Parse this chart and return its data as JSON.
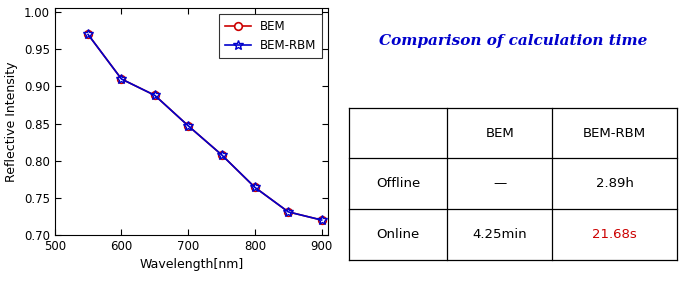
{
  "wavelengths": [
    550,
    600,
    650,
    700,
    750,
    800,
    850,
    900
  ],
  "bem_values": [
    0.97,
    0.91,
    0.888,
    0.847,
    0.808,
    0.764,
    0.731,
    0.72
  ],
  "rbm_values": [
    0.97,
    0.91,
    0.888,
    0.847,
    0.808,
    0.764,
    0.731,
    0.72
  ],
  "xlim": [
    500,
    910
  ],
  "ylim": [
    0.7,
    1.005
  ],
  "xlabel": "Wavelength[nm]",
  "ylabel": "Reflective Intensity",
  "yticks": [
    0.7,
    0.75,
    0.8,
    0.85,
    0.9,
    0.95,
    1.0
  ],
  "xticks": [
    500,
    600,
    700,
    800,
    900
  ],
  "bem_color": "#cc0000",
  "rbm_color": "#0000cc",
  "legend_labels": [
    "BEM",
    "BEM-RBM"
  ],
  "table_title": "Comparison of calculation time",
  "table_title_color": "#0000cc",
  "table_cols": [
    "",
    "BEM",
    "BEM-RBM"
  ],
  "table_rows": [
    "Offline",
    "Online"
  ],
  "table_data": [
    [
      "—",
      "2.89h"
    ],
    [
      "4.25min",
      "21.68s"
    ]
  ],
  "highlight_cell_color": "#cc0000",
  "background_color": "#ffffff"
}
